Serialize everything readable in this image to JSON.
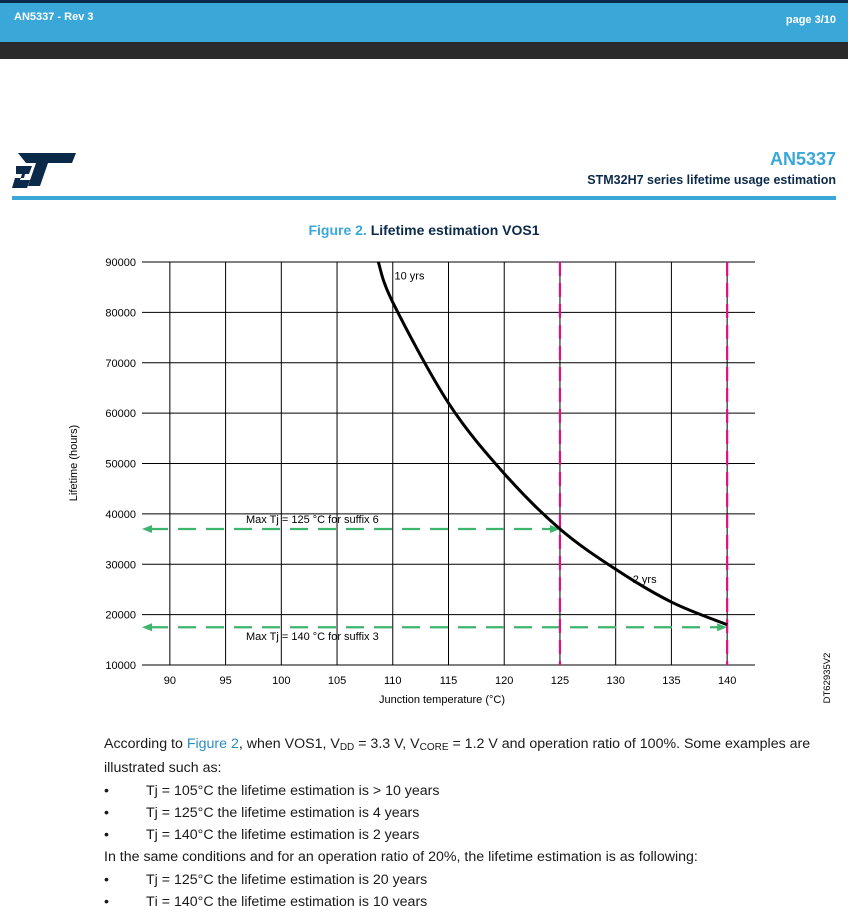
{
  "header": {
    "doc_rev": "AN5337 - Rev 3",
    "page": "page 3/10"
  },
  "doc": {
    "id": "AN5337",
    "subtitle": "STM32H7 series lifetime usage estimation"
  },
  "figure": {
    "label": "Figure 2.",
    "title": "Lifetime estimation VOS1",
    "code": "DT62935V2"
  },
  "chart_data": {
    "type": "line",
    "xlabel": "Junction temperature (°C)",
    "ylabel": "Lifetime (hours)",
    "xlim": [
      87.5,
      142.5
    ],
    "ylim": [
      10000,
      90000
    ],
    "x_ticks": [
      90,
      95,
      100,
      105,
      110,
      115,
      120,
      125,
      130,
      135,
      140
    ],
    "y_ticks": [
      10000,
      20000,
      30000,
      40000,
      50000,
      60000,
      70000,
      80000,
      90000
    ],
    "grid": true,
    "curve": {
      "x": [
        108.7,
        110,
        115,
        120,
        125,
        130,
        135,
        140
      ],
      "y": [
        90000,
        82000,
        62000,
        48000,
        37000,
        29000,
        22500,
        18000
      ]
    },
    "vertical_markers": [
      {
        "x": 125,
        "color": "#e0117f"
      },
      {
        "x": 140,
        "color": "#e0117f"
      }
    ],
    "horizontal_markers": [
      {
        "y": 37000,
        "x_end": 125,
        "label": "Max Tj = 125 °C for suffix 6",
        "color": "#3db56c"
      },
      {
        "y": 17500,
        "x_end": 140,
        "label": "Max Tj = 140 °C for suffix 3",
        "color": "#3db56c"
      }
    ],
    "annotations": [
      {
        "text": "10 yrs",
        "x": 111.5,
        "y": 86500
      },
      {
        "text": "2 yrs",
        "x": 132.6,
        "y": 26300
      }
    ]
  },
  "body": {
    "intro_pre": "According to ",
    "intro_link": "Figure 2",
    "intro_a": ", when VOS1, V",
    "sub_dd": "DD",
    "intro_b": " = 3.3 V, V",
    "sub_core": "CORE",
    "intro_c": " = 1.2 V and operation ratio of 100%. Some examples are illustrated such as:",
    "bullet_symbol": "•",
    "bullets_1": [
      "Tj = 105°C the lifetime estimation is > 10 years",
      "Tj = 125°C the lifetime estimation is 4 years",
      "Tj = 140°C the lifetime estimation is 2 years"
    ],
    "para2": "In the same conditions and for an operation ratio of 20%, the lifetime estimation is as following:",
    "bullets_2": [
      "Tj = 125°C the lifetime estimation is 20 years",
      "Tj = 140°C the lifetime estimation is 10 years"
    ]
  },
  "colors": {
    "brand_blue": "#3aa7d9",
    "navy": "#0b2a4a",
    "marker_pink": "#e0117f",
    "marker_green": "#3db56c"
  }
}
